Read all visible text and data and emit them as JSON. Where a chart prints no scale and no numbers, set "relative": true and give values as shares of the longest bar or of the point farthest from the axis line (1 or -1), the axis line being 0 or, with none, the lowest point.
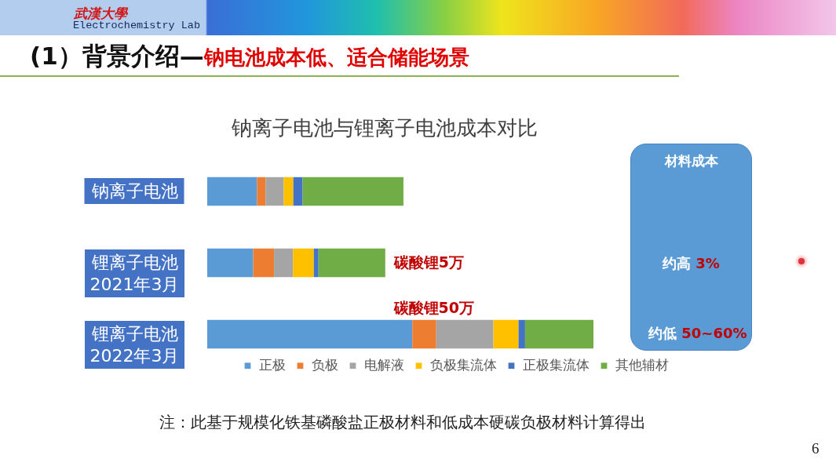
{
  "chart_data": {
    "type": "bar",
    "orientation": "horizontal",
    "stacked": true,
    "relative": true,
    "title": "钠离子电池与锂离子电池成本对比",
    "categories": [
      "钠离子电池",
      "锂离子电池\n2021年3月",
      "锂离子电池\n2022年3月"
    ],
    "series": [
      {
        "name": "正极",
        "color": "#5b9bd5",
        "values": [
          0.129,
          0.119,
          0.531
        ]
      },
      {
        "name": "负极",
        "color": "#ed7d31",
        "values": [
          0.022,
          0.054,
          0.062
        ]
      },
      {
        "name": "电解液",
        "color": "#a5a5a5",
        "values": [
          0.047,
          0.049,
          0.148
        ]
      },
      {
        "name": "负极集流体",
        "color": "#ffc000",
        "values": [
          0.025,
          0.054,
          0.065
        ]
      },
      {
        "name": "正极集流体",
        "color": "#4472c4",
        "values": [
          0.024,
          0.012,
          0.017
        ]
      },
      {
        "name": "其他辅材",
        "color": "#70ad47",
        "values": [
          0.261,
          0.173,
          0.177
        ]
      }
    ],
    "legend": "bottom",
    "annotations": [
      "武漢大學",
      "Electrochemistry Lab",
      "(1）背景介绍—",
      "钠电池成本低、适合储能场景",
      {
        "text": "碳酸锂5万",
        "x": 0.461,
        "y": "锂离子电池\n2021年3月"
      },
      {
        "text": "碳酸锂50万",
        "x": 0.587,
        "y": "锂离子电池\n2022年3月"
      },
      "材料成本",
      "约高 3%",
      "约低 50~60%",
      "注：此基于规模化铁基磷酸盐正极材料和低成本硬碳负极材料计算得出",
      "6"
    ]
  }
}
